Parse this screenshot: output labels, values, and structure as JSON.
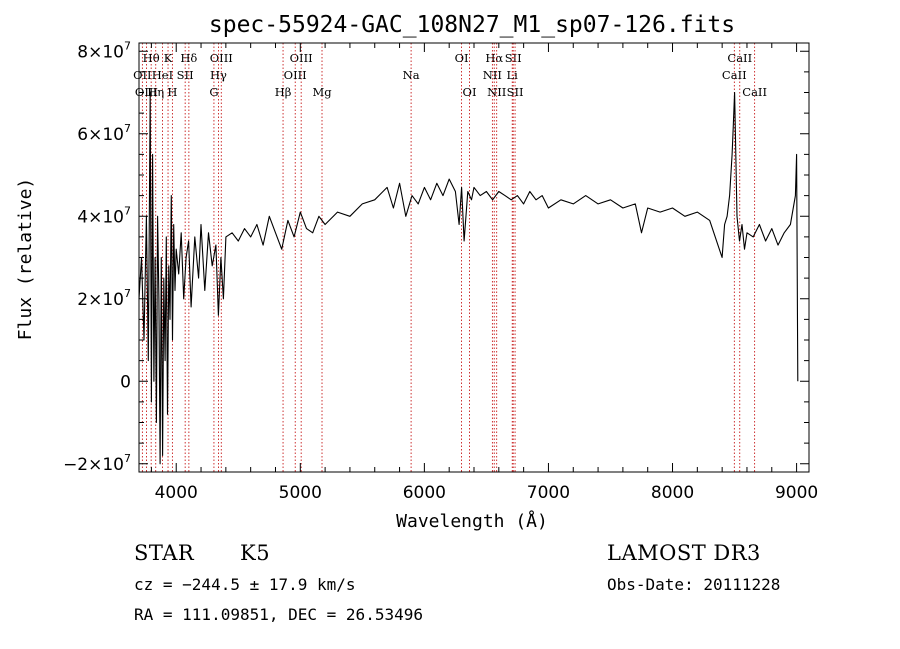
{
  "chart_data": {
    "type": "line",
    "title": "spec-55924-GAC_108N27_M1_sp07-126.fits",
    "xlabel": "Wavelength (Å)",
    "ylabel": "Flux (relative)",
    "xlim": [
      3700,
      9100
    ],
    "ylim": [
      -22000000,
      82000000
    ],
    "x_ticks": [
      4000,
      5000,
      6000,
      7000,
      8000,
      9000
    ],
    "x_tick_labels": [
      "4000",
      "5000",
      "6000",
      "7000",
      "8000",
      "9000"
    ],
    "y_ticks": [
      -20000000,
      0,
      20000000,
      40000000,
      60000000,
      80000000
    ],
    "y_tick_labels": [
      {
        "mant": "−2",
        "exp": "7"
      },
      {
        "mant": "0",
        "exp": ""
      },
      {
        "mant": "2",
        "exp": "7"
      },
      {
        "mant": "4",
        "exp": "7"
      },
      {
        "mant": "6",
        "exp": "7"
      },
      {
        "mant": "8",
        "exp": "7"
      }
    ],
    "line_markers": [
      {
        "label": "Hθ",
        "wavelength": 3798,
        "row": 1
      },
      {
        "label": "OII",
        "wavelength": 3727,
        "row": 2
      },
      {
        "label": "OIII",
        "wavelength": 3760,
        "row": 3
      },
      {
        "label": "K",
        "wavelength": 3934,
        "row": 1
      },
      {
        "label": "HeI",
        "wavelength": 3889,
        "row": 2
      },
      {
        "label": "Hη",
        "wavelength": 3835,
        "row": 3
      },
      {
        "label": "H",
        "wavelength": 3969,
        "row": 3
      },
      {
        "label": "Hδ",
        "wavelength": 4102,
        "row": 1
      },
      {
        "label": "SII",
        "wavelength": 4072,
        "row": 2
      },
      {
        "label": "OIII",
        "wavelength": 4363,
        "row": 1
      },
      {
        "label": "Hγ",
        "wavelength": 4340,
        "row": 2
      },
      {
        "label": "G",
        "wavelength": 4304,
        "row": 3
      },
      {
        "label": "Hβ",
        "wavelength": 4861,
        "row": 3
      },
      {
        "label": "OIII",
        "wavelength": 5007,
        "row": 1
      },
      {
        "label": "OIII",
        "wavelength": 4959,
        "row": 2
      },
      {
        "label": "Mg",
        "wavelength": 5175,
        "row": 3
      },
      {
        "label": "Na",
        "wavelength": 5893,
        "row": 2
      },
      {
        "label": "OI",
        "wavelength": 6300,
        "row": 1
      },
      {
        "label": "OI",
        "wavelength": 6364,
        "row": 3
      },
      {
        "label": "Hα",
        "wavelength": 6563,
        "row": 1
      },
      {
        "label": "SII",
        "wavelength": 6716,
        "row": 1
      },
      {
        "label": "NII",
        "wavelength": 6548,
        "row": 2
      },
      {
        "label": "Li",
        "wavelength": 6708,
        "row": 2
      },
      {
        "label": "NII",
        "wavelength": 6583,
        "row": 3
      },
      {
        "label": "SII",
        "wavelength": 6731,
        "row": 3
      },
      {
        "label": "CaII",
        "wavelength": 8542,
        "row": 1
      },
      {
        "label": "CaII",
        "wavelength": 8498,
        "row": 2
      },
      {
        "label": "CaII",
        "wavelength": 8662,
        "row": 3
      }
    ],
    "series": [
      {
        "name": "flux",
        "x": [
          3700,
          3720,
          3740,
          3760,
          3775,
          3790,
          3800,
          3810,
          3820,
          3830,
          3840,
          3850,
          3860,
          3870,
          3880,
          3890,
          3900,
          3910,
          3920,
          3930,
          3940,
          3950,
          3960,
          3970,
          3980,
          3990,
          4000,
          4020,
          4040,
          4060,
          4080,
          4100,
          4120,
          4150,
          4180,
          4200,
          4230,
          4260,
          4290,
          4320,
          4340,
          4360,
          4380,
          4400,
          4450,
          4500,
          4550,
          4600,
          4650,
          4700,
          4750,
          4800,
          4850,
          4900,
          4950,
          5000,
          5050,
          5100,
          5150,
          5200,
          5300,
          5400,
          5500,
          5600,
          5700,
          5750,
          5800,
          5850,
          5900,
          5950,
          6000,
          6050,
          6100,
          6150,
          6200,
          6250,
          6280,
          6300,
          6320,
          6350,
          6380,
          6400,
          6450,
          6500,
          6550,
          6600,
          6650,
          6700,
          6750,
          6800,
          6850,
          6900,
          6950,
          7000,
          7100,
          7200,
          7300,
          7400,
          7500,
          7600,
          7700,
          7750,
          7800,
          7900,
          8000,
          8100,
          8200,
          8300,
          8400,
          8420,
          8440,
          8460,
          8480,
          8490,
          8500,
          8510,
          8520,
          8540,
          8560,
          8580,
          8600,
          8650,
          8700,
          8750,
          8800,
          8850,
          8900,
          8950,
          8990,
          9000,
          9010
        ],
        "values": [
          20000000,
          30000000,
          10000000,
          40000000,
          5000000,
          70000000,
          -5000000,
          55000000,
          0,
          30000000,
          -10000000,
          40000000,
          20000000,
          -20000000,
          30000000,
          -18000000,
          25000000,
          5000000,
          35000000,
          -8000000,
          28000000,
          15000000,
          45000000,
          10000000,
          38000000,
          22000000,
          32000000,
          26000000,
          36000000,
          20000000,
          30000000,
          34000000,
          18000000,
          35000000,
          25000000,
          38000000,
          22000000,
          36000000,
          28000000,
          33000000,
          16000000,
          30000000,
          20000000,
          35000000,
          36000000,
          34000000,
          37000000,
          35000000,
          38000000,
          33000000,
          40000000,
          36000000,
          32000000,
          39000000,
          35000000,
          41000000,
          37000000,
          36000000,
          40000000,
          38000000,
          41000000,
          40000000,
          43000000,
          44000000,
          47000000,
          42000000,
          48000000,
          40000000,
          45000000,
          43000000,
          47000000,
          44000000,
          48000000,
          45000000,
          49000000,
          46000000,
          38000000,
          47000000,
          34000000,
          46000000,
          44000000,
          47000000,
          45000000,
          46000000,
          44000000,
          46000000,
          45000000,
          44000000,
          45000000,
          43000000,
          46000000,
          44000000,
          45000000,
          42000000,
          44000000,
          43000000,
          45000000,
          43000000,
          44000000,
          42000000,
          43000000,
          36000000,
          42000000,
          41000000,
          42000000,
          40000000,
          41000000,
          39000000,
          30000000,
          38000000,
          40000000,
          45000000,
          55000000,
          62000000,
          70000000,
          55000000,
          40000000,
          34000000,
          38000000,
          32000000,
          36000000,
          35000000,
          38000000,
          34000000,
          37000000,
          33000000,
          36000000,
          38000000,
          45000000,
          55000000,
          0
        ]
      }
    ]
  },
  "info": {
    "object_type": "STAR",
    "subclass": "K5",
    "survey": "LAMOST DR3",
    "cz": "cz = −244.5 ± 17.9 km/s",
    "obs_date": "Obs-Date: 20111228",
    "coords": "RA = 111.09851, DEC =  26.53496"
  }
}
